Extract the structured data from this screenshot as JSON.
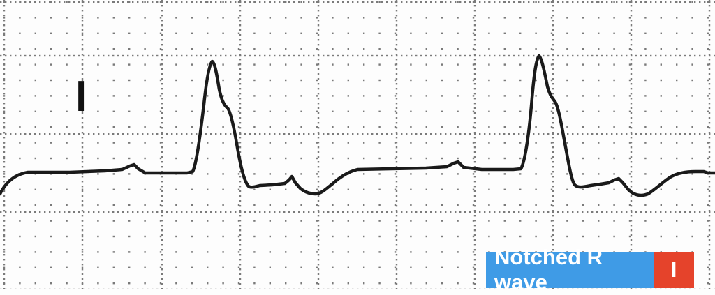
{
  "image": {
    "subject": "ECG rhythm strip",
    "lead_label": "I",
    "caption": {
      "text": "Notched R wave",
      "lead": "I"
    },
    "colors": {
      "paper": "#fdfdfd",
      "grid_dots": "#7a7a7a",
      "trace": "#1a1a1a",
      "caption_bg": "#3f9be6",
      "caption_lead_bg": "#e5432b"
    }
  }
}
